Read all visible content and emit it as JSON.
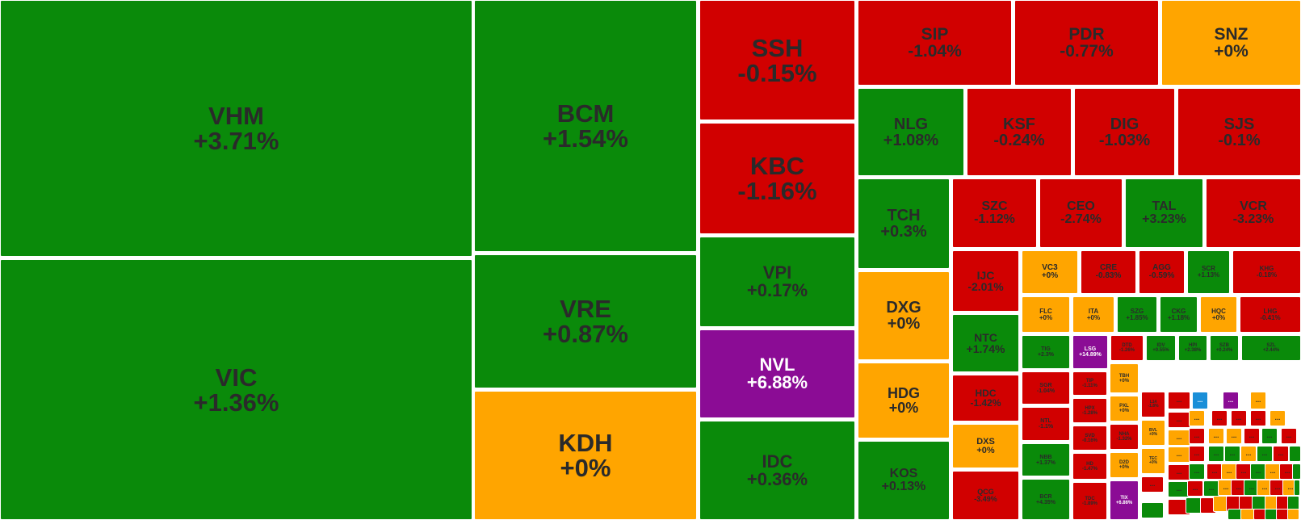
{
  "colors": {
    "up": "#0a8a0a",
    "down": "#d10000",
    "flat": "#ffa500",
    "ceiling": "#8b0c95",
    "floor": "#1a8fd8",
    "text_dark": "#2a2a2a",
    "text_light": "#ffffff",
    "gap": "#ffffff"
  },
  "chart_data": {
    "type": "treemap",
    "title": "",
    "more_label": "...",
    "tiles": [
      {
        "symbol": "VHM",
        "change": "+3.71%",
        "value": 3.71,
        "status": "up"
      },
      {
        "symbol": "VIC",
        "change": "+1.36%",
        "value": 1.36,
        "status": "up"
      },
      {
        "symbol": "BCM",
        "change": "+1.54%",
        "value": 1.54,
        "status": "up"
      },
      {
        "symbol": "VRE",
        "change": "+0.87%",
        "value": 0.87,
        "status": "up"
      },
      {
        "symbol": "KDH",
        "change": "+0%",
        "value": 0,
        "status": "flat"
      },
      {
        "symbol": "SSH",
        "change": "-0.15%",
        "value": -0.15,
        "status": "down"
      },
      {
        "symbol": "KBC",
        "change": "-1.16%",
        "value": -1.16,
        "status": "down"
      },
      {
        "symbol": "VPI",
        "change": "+0.17%",
        "value": 0.17,
        "status": "up"
      },
      {
        "symbol": "NVL",
        "change": "+6.88%",
        "value": 6.88,
        "status": "ceiling"
      },
      {
        "symbol": "IDC",
        "change": "+0.36%",
        "value": 0.36,
        "status": "up"
      },
      {
        "symbol": "SIP",
        "change": "-1.04%",
        "value": -1.04,
        "status": "down"
      },
      {
        "symbol": "PDR",
        "change": "-0.77%",
        "value": -0.77,
        "status": "down"
      },
      {
        "symbol": "SNZ",
        "change": "+0%",
        "value": 0,
        "status": "flat"
      },
      {
        "symbol": "NLG",
        "change": "+1.08%",
        "value": 1.08,
        "status": "up"
      },
      {
        "symbol": "KSF",
        "change": "-0.24%",
        "value": -0.24,
        "status": "down"
      },
      {
        "symbol": "DIG",
        "change": "-1.03%",
        "value": -1.03,
        "status": "down"
      },
      {
        "symbol": "SJS",
        "change": "-0.1%",
        "value": -0.1,
        "status": "down"
      },
      {
        "symbol": "TCH",
        "change": "+0.3%",
        "value": 0.3,
        "status": "up"
      },
      {
        "symbol": "SZC",
        "change": "-1.12%",
        "value": -1.12,
        "status": "down"
      },
      {
        "symbol": "CEO",
        "change": "-2.74%",
        "value": -2.74,
        "status": "down"
      },
      {
        "symbol": "TAL",
        "change": "+3.23%",
        "value": 3.23,
        "status": "up"
      },
      {
        "symbol": "VCR",
        "change": "-3.23%",
        "value": -3.23,
        "status": "down"
      },
      {
        "symbol": "DXG",
        "change": "+0%",
        "value": 0,
        "status": "flat"
      },
      {
        "symbol": "HDG",
        "change": "+0%",
        "value": 0,
        "status": "flat"
      },
      {
        "symbol": "KOS",
        "change": "+0.13%",
        "value": 0.13,
        "status": "up"
      },
      {
        "symbol": "IJC",
        "change": "-2.01%",
        "value": -2.01,
        "status": "down"
      },
      {
        "symbol": "NTC",
        "change": "+1.74%",
        "value": 1.74,
        "status": "up"
      },
      {
        "symbol": "HDC",
        "change": "-1.42%",
        "value": -1.42,
        "status": "down"
      },
      {
        "symbol": "DXS",
        "change": "+0%",
        "value": 0,
        "status": "flat"
      },
      {
        "symbol": "QCG",
        "change": "-3.49%",
        "value": -3.49,
        "status": "down"
      },
      {
        "symbol": "VC3",
        "change": "+0%",
        "value": 0,
        "status": "flat"
      },
      {
        "symbol": "CRE",
        "change": "-0.83%",
        "value": -0.83,
        "status": "down"
      },
      {
        "symbol": "AGG",
        "change": "-0.59%",
        "value": -0.59,
        "status": "down"
      },
      {
        "symbol": "SCR",
        "change": "+1.13%",
        "value": 1.13,
        "status": "up"
      },
      {
        "symbol": "KHG",
        "change": "-0.18%",
        "value": -0.18,
        "status": "down"
      },
      {
        "symbol": "FLC",
        "change": "+0%",
        "value": 0,
        "status": "flat"
      },
      {
        "symbol": "ITA",
        "change": "+0%",
        "value": 0,
        "status": "flat"
      },
      {
        "symbol": "SZG",
        "change": "+1.85%",
        "value": 1.85,
        "status": "up"
      },
      {
        "symbol": "CKG",
        "change": "+1.18%",
        "value": 1.18,
        "status": "up"
      },
      {
        "symbol": "HQC",
        "change": "+0%",
        "value": 0,
        "status": "flat"
      },
      {
        "symbol": "LHG",
        "change": "-0.41%",
        "value": -0.41,
        "status": "down"
      },
      {
        "symbol": "TIG",
        "change": "+2.3%",
        "value": 2.3,
        "status": "up"
      },
      {
        "symbol": "LSG",
        "change": "+14.89%",
        "value": 14.89,
        "status": "ceiling"
      },
      {
        "symbol": "DTD",
        "change": "-1.26%",
        "value": -1.26,
        "status": "down"
      },
      {
        "symbol": "IDV",
        "change": "+0.55%",
        "value": 0.55,
        "status": "up"
      },
      {
        "symbol": "HPI",
        "change": "+2.38%",
        "value": 2.38,
        "status": "up"
      },
      {
        "symbol": "SZB",
        "change": "+0.24%",
        "value": 0.24,
        "status": "up"
      },
      {
        "symbol": "SZL",
        "change": "+2.44%",
        "value": 2.44,
        "status": "up"
      },
      {
        "symbol": "SGR",
        "change": "-1.04%",
        "value": -1.04,
        "status": "down"
      },
      {
        "symbol": "TIP",
        "change": "-1.11%",
        "value": -1.11,
        "status": "down"
      },
      {
        "symbol": "TBH",
        "change": "+0%",
        "value": 0,
        "status": "flat"
      },
      {
        "symbol": "NTL",
        "change": "-1.1%",
        "value": -1.1,
        "status": "down"
      },
      {
        "symbol": "HPX",
        "change": "-1.28%",
        "value": -1.28,
        "status": "down"
      },
      {
        "symbol": "PXL",
        "change": "+0%",
        "value": 0,
        "status": "flat"
      },
      {
        "symbol": "L14",
        "change": "-1.8%",
        "value": -1.8,
        "status": "down"
      },
      {
        "symbol": "BVL",
        "change": "+0%",
        "value": 0,
        "status": "flat"
      },
      {
        "symbol": "NBB",
        "change": "+1.37%",
        "value": 1.37,
        "status": "up"
      },
      {
        "symbol": "SVD",
        "change": "-0.16%",
        "value": -0.16,
        "status": "down"
      },
      {
        "symbol": "NHA",
        "change": "-1.32%",
        "value": -1.32,
        "status": "down"
      },
      {
        "symbol": "TEC",
        "change": "+0%",
        "value": 0,
        "status": "flat"
      },
      {
        "symbol": "HD",
        "change": "-1.47%",
        "value": -1.47,
        "status": "down"
      },
      {
        "symbol": "D2D",
        "change": "+0%",
        "value": 0,
        "status": "flat"
      },
      {
        "symbol": "BCR",
        "change": "+4.35%",
        "value": 4.35,
        "status": "up"
      },
      {
        "symbol": "TDC",
        "change": "-1.89%",
        "value": -1.89,
        "status": "down"
      },
      {
        "symbol": "TIX",
        "change": "+6.86%",
        "value": 6.86,
        "status": "ceiling"
      }
    ]
  }
}
